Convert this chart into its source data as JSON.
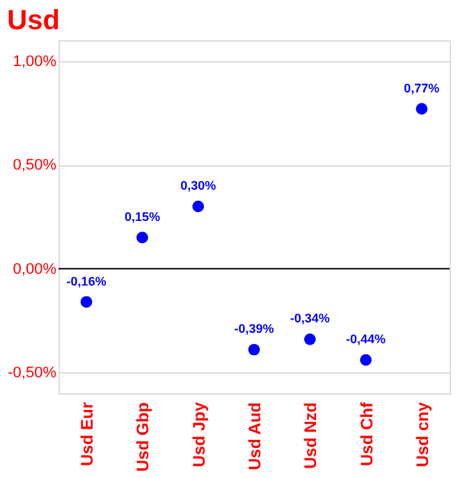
{
  "chart_data": {
    "type": "scatter",
    "title": "Usd",
    "categories": [
      "Usd Eur",
      "Usd Gbp",
      "Usd Jpy",
      "Usd Aud",
      "Usd Nzd",
      "Usd Chf",
      "Usd cny"
    ],
    "series": [
      {
        "color": "#0000ff",
        "values": [
          -0.16,
          0.15,
          0.3,
          -0.39,
          -0.34,
          -0.44,
          0.77
        ],
        "value_labels": [
          "-0,16%",
          "0,15%",
          "0,30%",
          "-0,39%",
          "-0,34%",
          "-0,44%",
          "0,77%"
        ]
      }
    ],
    "ylim": [
      -0.6,
      1.1
    ],
    "yticks": [
      {
        "value": -0.5,
        "label": "-0,50%"
      },
      {
        "value": 0,
        "label": "0,00%"
      },
      {
        "value": 0.5,
        "label": "0,50%"
      },
      {
        "value": 1.0,
        "label": "1,00%"
      }
    ],
    "ref_lines": [
      {
        "axis": "y",
        "value": 0,
        "color": "#000000"
      }
    ],
    "grid": "y",
    "marker": "circle"
  }
}
